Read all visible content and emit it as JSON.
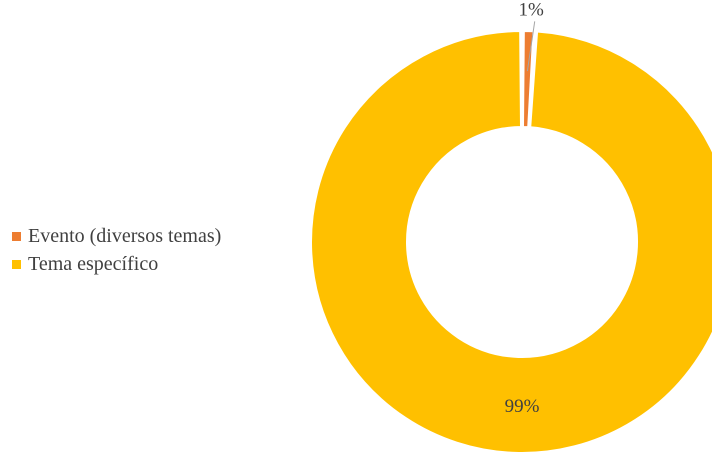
{
  "chart_data": {
    "type": "pie",
    "variant": "donut",
    "title": "",
    "categories": [
      "Evento (diversos temas)",
      "Tema específico"
    ],
    "values": [
      1,
      99
    ],
    "data_labels": [
      "1%",
      "99%"
    ],
    "colors": [
      "#ED7D31",
      "#FFC000"
    ],
    "legend_position": "left",
    "start_angle_deg": 0
  }
}
